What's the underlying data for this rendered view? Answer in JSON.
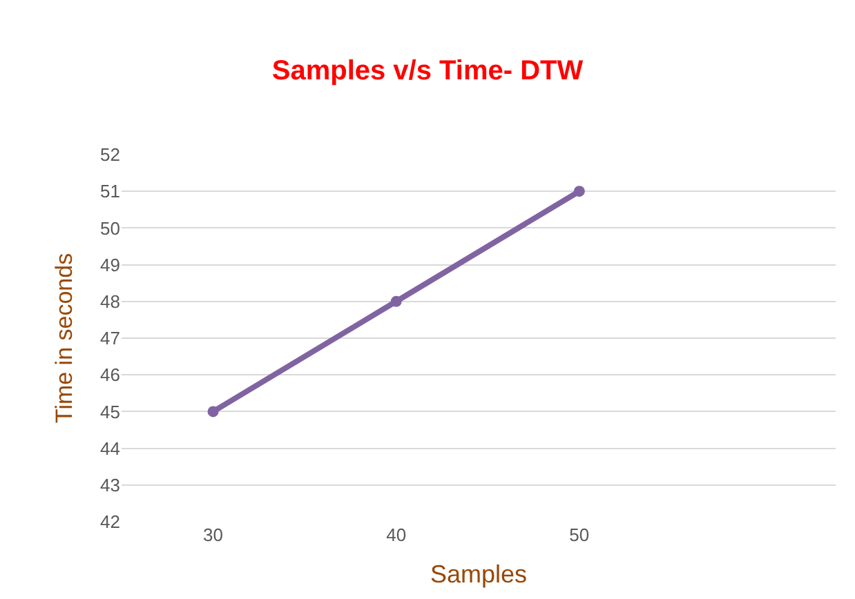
{
  "chart_data": {
    "type": "line",
    "title": "Samples v/s Time- DTW",
    "xlabel": "Samples",
    "ylabel": "Time in seconds",
    "x": [
      30,
      40,
      50
    ],
    "series": [
      {
        "color": "#8064a2",
        "values": [
          45,
          48,
          51
        ]
      }
    ],
    "xlim": [
      25,
      64
    ],
    "xticks": [
      30,
      40,
      50
    ],
    "ylim": [
      42,
      52
    ],
    "yticks": [
      42,
      43,
      44,
      45,
      46,
      47,
      48,
      49,
      50,
      51,
      52
    ],
    "grid": "y",
    "marker": "circle",
    "line_style": "solid",
    "legend": false
  }
}
